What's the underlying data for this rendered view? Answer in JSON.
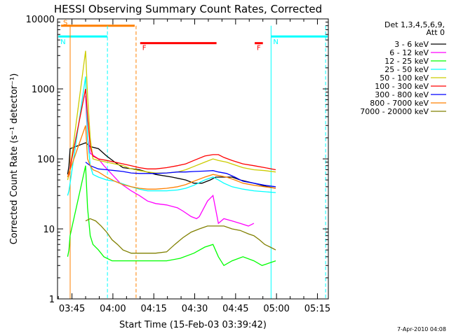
{
  "chart_data": {
    "type": "line",
    "title": "HESSI Observing Summary Count Rates, Corrected",
    "xlabel": "Start Time (15-Feb-03 03:39:42)",
    "ylabel": "Corrected Count Rate (s⁻¹ detector⁻¹)",
    "x_ticks": [
      "03:45",
      "04:00",
      "04:15",
      "04:30",
      "04:45",
      "05:00",
      "05:15"
    ],
    "y_ticks": [
      "1",
      "10",
      "100",
      "1000",
      "10000"
    ],
    "y_scale": "log",
    "ylim": [
      1,
      10000
    ],
    "xlim": [
      "03:39:42",
      "05:19:00"
    ],
    "grid": false,
    "legend_position": "right",
    "legend_header": [
      "Det 1,3,4,5,6,9,",
      "Att 0"
    ],
    "stamp": "7-Apr-2010 04:08",
    "flags": [
      {
        "label": "S",
        "color": "#ff8000",
        "start": "03:41",
        "end": "04:08",
        "level": 8000
      },
      {
        "label": "N",
        "color": "#00ffff",
        "start": "03:40",
        "end": "03:58",
        "level": 5600
      },
      {
        "label": "N",
        "color": "#00ffff",
        "start": "04:58",
        "end": "05:19",
        "level": 5600
      },
      {
        "label": "F",
        "color": "#ff0000",
        "start": "04:10",
        "end": "04:38",
        "level": 4500
      },
      {
        "label": "F",
        "color": "#ff0000",
        "start": "04:52",
        "end": "04:55",
        "level": 4500
      }
    ],
    "vlines": [
      {
        "time": "03:44:20",
        "color": "#ff8000",
        "style": "solid"
      },
      {
        "time": "04:08:30",
        "color": "#ff8000",
        "style": "dashed"
      },
      {
        "time": "03:58:00",
        "color": "#00ffff",
        "style": "dashed"
      },
      {
        "time": "04:58:00",
        "color": "#00ffff",
        "style": "solid"
      },
      {
        "time": "05:18:00",
        "color": "#00ffff",
        "style": "dashed"
      }
    ],
    "series": [
      {
        "name": "3 - 6 keV",
        "color": "#000000",
        "points": [
          [
            3.7,
            60
          ],
          [
            4.2,
            80
          ],
          [
            4.6,
            140
          ],
          [
            10.3,
            170
          ],
          [
            12,
            150
          ],
          [
            15,
            140
          ],
          [
            18,
            110
          ],
          [
            21,
            90
          ],
          [
            24,
            75
          ],
          [
            30,
            70
          ],
          [
            36,
            60
          ],
          [
            42,
            55
          ],
          [
            47,
            50
          ],
          [
            50,
            45
          ],
          [
            53,
            45
          ],
          [
            56,
            50
          ],
          [
            58,
            55
          ],
          [
            61,
            55
          ],
          [
            64,
            55
          ],
          [
            67,
            50
          ],
          [
            72,
            45
          ],
          [
            77,
            40
          ],
          [
            80,
            38
          ]
        ]
      },
      {
        "name": "6 - 12 keV",
        "color": "#ff00ff",
        "points": [
          [
            10.3,
            800
          ],
          [
            11,
            200
          ],
          [
            12,
            120
          ],
          [
            15,
            100
          ],
          [
            17,
            80
          ],
          [
            20,
            60
          ],
          [
            23,
            45
          ],
          [
            27,
            35
          ],
          [
            30,
            30
          ],
          [
            33,
            25
          ],
          [
            36,
            23
          ],
          [
            40,
            22
          ],
          [
            44,
            20
          ],
          [
            46,
            18
          ],
          [
            49,
            15
          ],
          [
            51,
            14
          ],
          [
            52,
            15
          ],
          [
            55,
            25
          ],
          [
            57,
            30
          ],
          [
            59,
            12
          ],
          [
            61,
            14
          ],
          [
            64,
            13
          ],
          [
            67,
            12
          ],
          [
            70,
            11
          ],
          [
            72,
            12
          ]
        ]
      },
      {
        "name": "12 - 25 keV",
        "color": "#00ff00",
        "points": [
          [
            3.7,
            4
          ],
          [
            4.2,
            5
          ],
          [
            4.6,
            8
          ],
          [
            10.3,
            80
          ],
          [
            11,
            20
          ],
          [
            12,
            8
          ],
          [
            13,
            6
          ],
          [
            15,
            5
          ],
          [
            17,
            4
          ],
          [
            20,
            3.5
          ],
          [
            30,
            3.5
          ],
          [
            40,
            3.5
          ],
          [
            45,
            3.8
          ],
          [
            50,
            4.5
          ],
          [
            54,
            5.5
          ],
          [
            57,
            6
          ],
          [
            59,
            4
          ],
          [
            61,
            3
          ],
          [
            64,
            3.5
          ],
          [
            68,
            4
          ],
          [
            72,
            3.5
          ],
          [
            75,
            3
          ],
          [
            80,
            3.5
          ]
        ]
      },
      {
        "name": "25 - 50 keV",
        "color": "#00ffff",
        "points": [
          [
            3.7,
            30
          ],
          [
            4.2,
            35
          ],
          [
            4.6,
            45
          ],
          [
            10.3,
            1500
          ],
          [
            11,
            200
          ],
          [
            12,
            80
          ],
          [
            13,
            60
          ],
          [
            15,
            55
          ],
          [
            18,
            50
          ],
          [
            21,
            48
          ],
          [
            24,
            44
          ],
          [
            27,
            40
          ],
          [
            30,
            37
          ],
          [
            33,
            35
          ],
          [
            36,
            35
          ],
          [
            40,
            35
          ],
          [
            44,
            36
          ],
          [
            47,
            38
          ],
          [
            50,
            42
          ],
          [
            54,
            50
          ],
          [
            57,
            55
          ],
          [
            59,
            50
          ],
          [
            61,
            45
          ],
          [
            64,
            40
          ],
          [
            68,
            37
          ],
          [
            72,
            35
          ],
          [
            76,
            34
          ],
          [
            80,
            33
          ]
        ]
      },
      {
        "name": "50 - 100 keV",
        "color": "#cccc00",
        "points": [
          [
            3.7,
            50
          ],
          [
            4.2,
            60
          ],
          [
            4.6,
            70
          ],
          [
            10.3,
            3500
          ],
          [
            11,
            800
          ],
          [
            12,
            200
          ],
          [
            13,
            100
          ],
          [
            15,
            95
          ],
          [
            18,
            90
          ],
          [
            21,
            85
          ],
          [
            24,
            80
          ],
          [
            27,
            72
          ],
          [
            30,
            68
          ],
          [
            33,
            65
          ],
          [
            36,
            63
          ],
          [
            40,
            63
          ],
          [
            44,
            65
          ],
          [
            47,
            70
          ],
          [
            50,
            78
          ],
          [
            54,
            90
          ],
          [
            57,
            100
          ],
          [
            59,
            95
          ],
          [
            62,
            90
          ],
          [
            65,
            82
          ],
          [
            68,
            75
          ],
          [
            72,
            70
          ],
          [
            76,
            68
          ],
          [
            80,
            65
          ]
        ]
      },
      {
        "name": "100 - 300 keV",
        "color": "#ff0000",
        "points": [
          [
            3.7,
            55
          ],
          [
            4.2,
            60
          ],
          [
            4.6,
            75
          ],
          [
            10.3,
            1000
          ],
          [
            11,
            400
          ],
          [
            12,
            150
          ],
          [
            13,
            110
          ],
          [
            15,
            100
          ],
          [
            18,
            95
          ],
          [
            21,
            90
          ],
          [
            24,
            85
          ],
          [
            27,
            80
          ],
          [
            30,
            75
          ],
          [
            33,
            72
          ],
          [
            36,
            72
          ],
          [
            40,
            75
          ],
          [
            44,
            80
          ],
          [
            47,
            85
          ],
          [
            50,
            95
          ],
          [
            54,
            110
          ],
          [
            57,
            115
          ],
          [
            59,
            115
          ],
          [
            61,
            105
          ],
          [
            64,
            95
          ],
          [
            68,
            85
          ],
          [
            72,
            80
          ],
          [
            76,
            75
          ],
          [
            80,
            70
          ]
        ]
      },
      {
        "name": "300 - 800 keV",
        "color": "#0000ff",
        "points": [
          [
            10.3,
            90
          ],
          [
            12,
            80
          ],
          [
            15,
            72
          ],
          [
            18,
            70
          ],
          [
            21,
            68
          ],
          [
            24,
            66
          ],
          [
            27,
            63
          ],
          [
            30,
            62
          ],
          [
            33,
            62
          ],
          [
            36,
            62
          ],
          [
            40,
            63
          ],
          [
            44,
            65
          ],
          [
            47,
            65
          ],
          [
            50,
            66
          ],
          [
            54,
            67
          ],
          [
            57,
            68
          ],
          [
            59,
            65
          ],
          [
            62,
            62
          ],
          [
            65,
            55
          ],
          [
            68,
            48
          ],
          [
            72,
            45
          ],
          [
            76,
            42
          ],
          [
            80,
            40
          ]
        ]
      },
      {
        "name": "800 - 7000 keV",
        "color": "#ff8000",
        "points": [
          [
            3.7,
            55
          ],
          [
            4.2,
            65
          ],
          [
            4.6,
            70
          ],
          [
            10.3,
            300
          ],
          [
            11,
            100
          ],
          [
            12,
            80
          ],
          [
            13,
            70
          ],
          [
            15,
            65
          ],
          [
            18,
            55
          ],
          [
            21,
            48
          ],
          [
            24,
            43
          ],
          [
            27,
            40
          ],
          [
            30,
            38
          ],
          [
            33,
            37
          ],
          [
            36,
            37
          ],
          [
            40,
            38
          ],
          [
            44,
            40
          ],
          [
            47,
            43
          ],
          [
            50,
            48
          ],
          [
            54,
            55
          ],
          [
            57,
            60
          ],
          [
            59,
            58
          ],
          [
            62,
            55
          ],
          [
            65,
            50
          ],
          [
            68,
            45
          ],
          [
            72,
            42
          ],
          [
            76,
            40
          ],
          [
            80,
            38
          ]
        ]
      },
      {
        "name": "7000 - 20000 keV",
        "color": "#808000",
        "points": [
          [
            10.3,
            13
          ],
          [
            12,
            14
          ],
          [
            14,
            13
          ],
          [
            16,
            11
          ],
          [
            18,
            9
          ],
          [
            20,
            7
          ],
          [
            22,
            6
          ],
          [
            24,
            5
          ],
          [
            27,
            4.5
          ],
          [
            30,
            4.5
          ],
          [
            33,
            4.5
          ],
          [
            36,
            4.5
          ],
          [
            40,
            4.7
          ],
          [
            43,
            6
          ],
          [
            46,
            7.5
          ],
          [
            49,
            9
          ],
          [
            52,
            10
          ],
          [
            55,
            11
          ],
          [
            58,
            11
          ],
          [
            61,
            11
          ],
          [
            64,
            10
          ],
          [
            67,
            9.5
          ],
          [
            70,
            8.5
          ],
          [
            72,
            8
          ],
          [
            74,
            7
          ],
          [
            76,
            6
          ],
          [
            78,
            5.5
          ],
          [
            80,
            5
          ]
        ]
      }
    ]
  }
}
